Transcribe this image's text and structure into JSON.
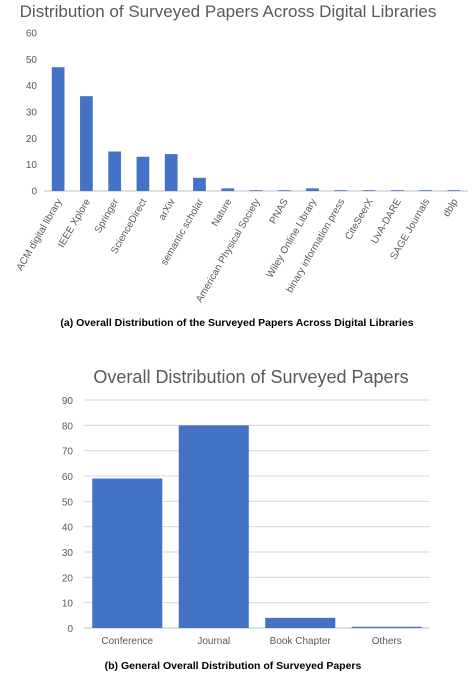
{
  "chart_data": [
    {
      "type": "bar",
      "title": "Distribution of Surveyed Papers Across Digital Libraries",
      "caption": "(a)  Overall Distribution of the Surveyed Papers Across Digital Libraries",
      "categories": [
        "ACM digital library",
        "IEEE Xplore",
        "Springer",
        "ScienceDirect",
        "arXiv",
        "semantic scholar",
        "Nature",
        "American Physical Society",
        "PNAS",
        "Wiley Online Library",
        "binary information press",
        "CiteSeerX",
        "UvA-DARE",
        "SAGE Journals",
        "dblp"
      ],
      "values": [
        47,
        36,
        15,
        13,
        14,
        5,
        1,
        0.3,
        0.3,
        1,
        0.3,
        0.3,
        0.3,
        0.3,
        0.3
      ],
      "ylim": [
        0,
        60
      ],
      "yticks": [
        0,
        10,
        20,
        30,
        40,
        50,
        60
      ],
      "grid": false,
      "bar_color": "#4472c4"
    },
    {
      "type": "bar",
      "title": "Overall Distribution of Surveyed Papers",
      "caption": "(b)  General Overall Distribution of Surveyed Papers",
      "categories": [
        "Conference",
        "Journal",
        "Book Chapter",
        "Others"
      ],
      "values": [
        59,
        80,
        4,
        0.5
      ],
      "ylim": [
        0,
        90
      ],
      "yticks": [
        0,
        10,
        20,
        30,
        40,
        50,
        60,
        70,
        80,
        90
      ],
      "grid": true,
      "bar_color": "#4472c4"
    }
  ]
}
